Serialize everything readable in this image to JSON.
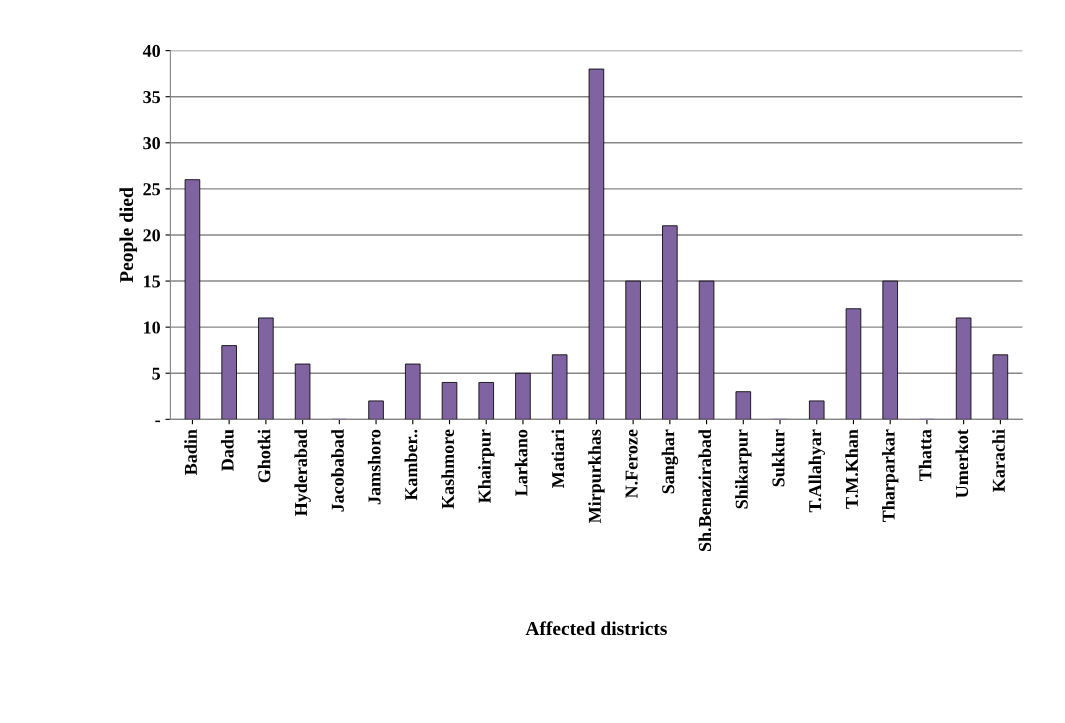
{
  "chart_data": {
    "type": "bar",
    "xlabel": "Affected districts",
    "ylabel": "People died",
    "categories": [
      "Badin",
      "Dadu",
      "Ghotki",
      "Hyderabad",
      "Jacobabad",
      "Jamshoro",
      "Kamber..",
      "Kashmore",
      "Khairpur",
      "Larkano",
      "Matiari",
      "Mirpurkhas",
      "N.Feroze",
      "Sanghar",
      "Sh.Benazirabad",
      "Shikarpur",
      "Sukkur",
      "T.Allahyar",
      "T.M.Khan",
      "Tharparkar",
      "Thatta",
      "Umerkot",
      "Karachi"
    ],
    "values": [
      26,
      8,
      11,
      6,
      0,
      2,
      6,
      4,
      4,
      5,
      7,
      38,
      15,
      21,
      15,
      3,
      0,
      2,
      12,
      15,
      0,
      11,
      7
    ],
    "color": "#8064a2",
    "ylim": [
      0,
      40
    ],
    "yticks": [
      {
        "value": 0,
        "label": "-"
      },
      5,
      10,
      15,
      20,
      25,
      30,
      35,
      40
    ],
    "grid": "y"
  }
}
